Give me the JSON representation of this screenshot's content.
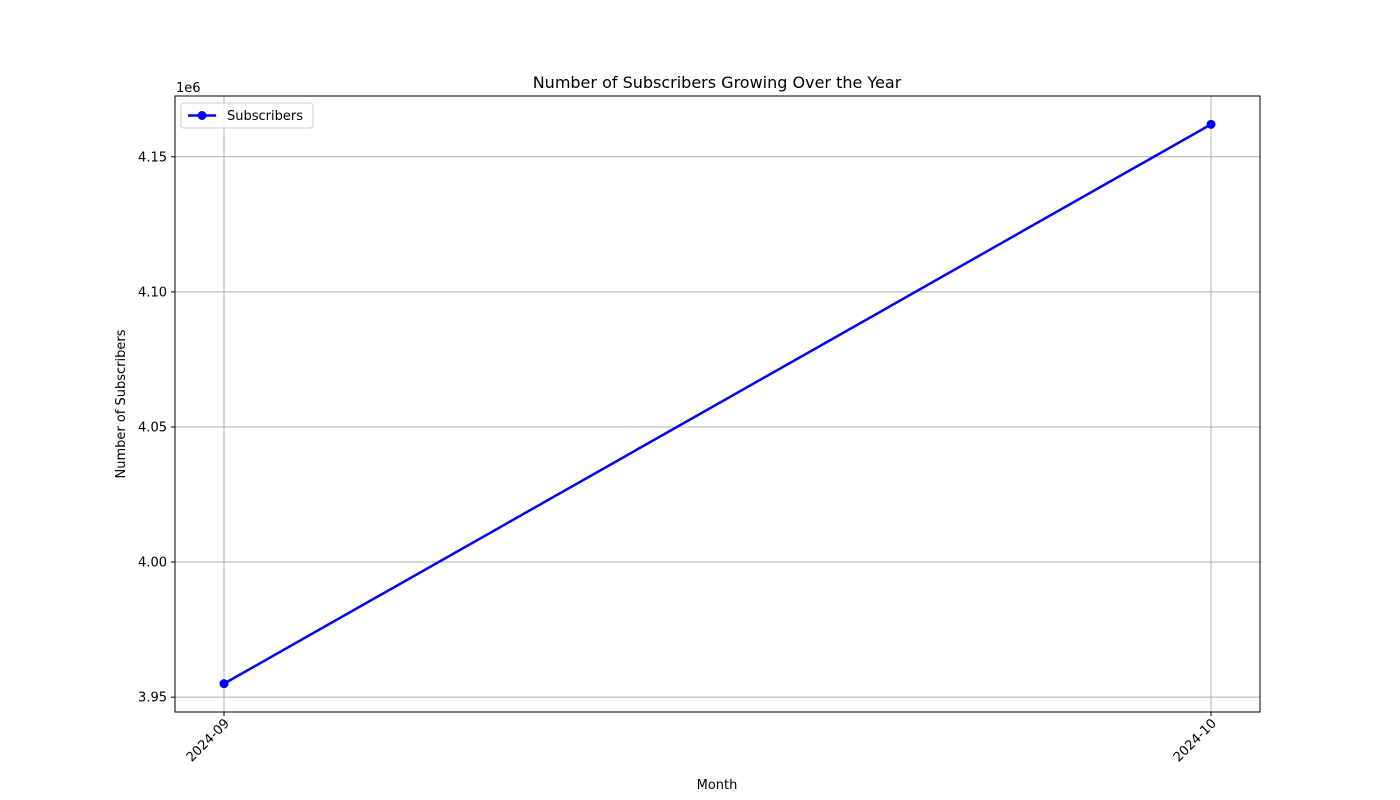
{
  "chart_data": {
    "type": "line",
    "title": "Number of Subscribers Growing Over the Year",
    "xlabel": "Month",
    "ylabel": "Number of Subscribers",
    "y_offset_label": "1e6",
    "categories": [
      "2024-09",
      "2024-10"
    ],
    "series": [
      {
        "name": "Subscribers",
        "values": [
          3955000,
          4162000
        ],
        "color": "#0000ff",
        "marker": "circle"
      }
    ],
    "yticks": [
      3950000,
      4000000,
      4050000,
      4100000,
      4150000
    ],
    "ytick_labels": [
      "3.95",
      "4.00",
      "4.05",
      "4.10",
      "4.15"
    ],
    "ylim": [
      3944500,
      4172500
    ],
    "grid": true,
    "legend_position": "upper-left",
    "xtick_rotation": "45deg",
    "grid_color": "#b0b0b0",
    "axis_color": "#000000"
  }
}
